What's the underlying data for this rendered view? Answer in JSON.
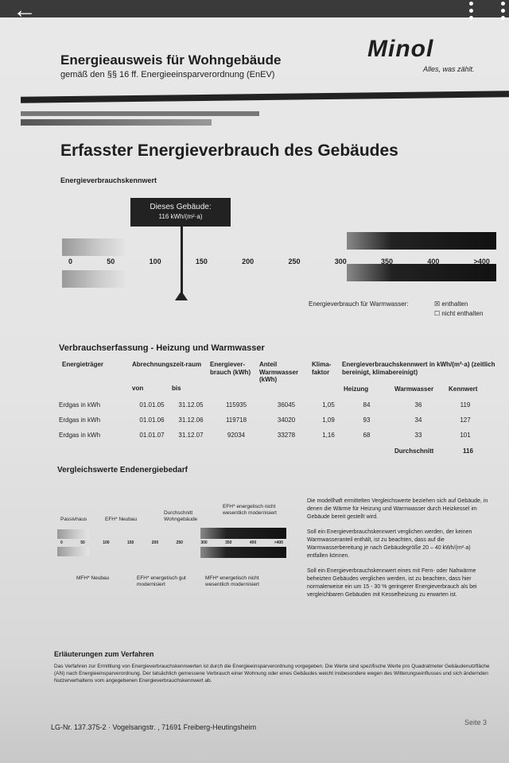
{
  "viewer": {
    "back_icon": "arrow-left-icon",
    "menu_icon": "more-vertical-icon"
  },
  "header": {
    "title": "Energieausweis für Wohngebäude",
    "subtitle": "gemäß den §§ 16 ff. Energieeinsparverordnung (EnEV)",
    "logo": "Minol",
    "slogan": "Alles, was zählt."
  },
  "section_title": "Erfasster Energieverbrauch des Gebäudes",
  "kennwert": {
    "label": "Energieverbrauchskennwert",
    "marker_title": "Dieses Gebäude:",
    "marker_value": "116 kWh/(m²·a)",
    "value": 116,
    "scale": [
      "0",
      "50",
      "100",
      "150",
      "200",
      "250",
      "300",
      "350",
      "400",
      ">400"
    ],
    "warmwasser_label": "Energieverbrauch für Warmwasser:",
    "enthalten": "enthalten",
    "nicht_enthalten": "nicht enthalten",
    "enthalten_checked": true
  },
  "verbrauch": {
    "title": "Verbrauchserfassung - Heizung und Warmwasser",
    "headers": {
      "traeger": "Energieträger",
      "zeitraum": "Abrechnungszeit-raum",
      "von": "von",
      "bis": "bis",
      "verbrauch": "Energiever-brauch (kWh)",
      "anteil": "Anteil Warmwasser (kWh)",
      "klima": "Klima-faktor",
      "kennwert": "Energieverbrauchskennwert in kWh/(m²·a) (zeitlich bereinigt, klimabereinigt)",
      "heizung": "Heizung",
      "warmwasser": "Warmwasser",
      "kw": "Kennwert"
    },
    "rows": [
      [
        "Erdgas in kWh",
        "01.01.05",
        "31.12.05",
        "115935",
        "36045",
        "1,05",
        "84",
        "36",
        "119"
      ],
      [
        "Erdgas in kWh",
        "01.01.06",
        "31.12.06",
        "119718",
        "34020",
        "1,09",
        "93",
        "34",
        "127"
      ],
      [
        "Erdgas in kWh",
        "01.01.07",
        "31.12.07",
        "92034",
        "33278",
        "1,16",
        "68",
        "33",
        "101"
      ]
    ],
    "avg_label": "Durchschnitt",
    "avg": "116"
  },
  "vergleich": {
    "title": "Vergleichswerte Endenergiebedarf",
    "top_labels": [
      "Passivhaus",
      "EFH* Neubau",
      "Durchschnitt Wohngebäude",
      "EFH* energetisch nicht wesentlich modernisiert"
    ],
    "scale": [
      "0",
      "50",
      "100",
      "150",
      "200",
      "250",
      "300",
      "350",
      "400",
      ">400"
    ],
    "bottom_labels": [
      "MFH* Neubau",
      "EFH* energetisch gut modernisiert",
      "MFH* energetisch nicht wesentlich modernisiert"
    ],
    "text": [
      "Die modellhaft ermittelten Vergleichswerte beziehen sich auf Gebäude, in denen die Wärme für Heizung und Warmwasser durch Heizkessel im Gebäude bereit gestellt wird.",
      "Soll ein Energieverbrauchskennwert verglichen werden, der keinen Warmwasseranteil enthält, ist zu beachten, dass auf die Warmwasserbereitung je nach Gebäudegröße 20 – 40 kWh/(m²·a) entfallen können.",
      "Soll ein Energieverbrauchskennwert eines mit Fern- oder Nahwärme beheizten Gebäudes verglichen werden, ist zu beachten, dass hier normalerweise ein um 15 - 30 % geringerer Energieverbrauch als bei vergleichbaren Gebäuden mit Kesselheizung zu erwarten ist."
    ]
  },
  "erlaeuterung": {
    "title": "Erläuterungen zum Verfahren",
    "text": "Das Verfahren zur Ermittlung von Energieverbrauchskennwerten ist durch die Energieeinsparverordnung vorgegeben. Die Werte sind spezifische Werte pro Quadratmeter Gebäudenutzfläche (AN) nach Energieeinsparverordnung. Der tatsächlich gemessene Verbrauch einer Wohnung oder eines Gebäudes weicht insbesondere wegen des Witterungseinflusses und sich ändernden Nutzerverhaltens vom angegebenen Energieverbrauchskennwert ab."
  },
  "footer": {
    "address": "LG-Nr. 137.375-2 · Vogelsangstr. , 71691 Freiberg-Heutingsheim",
    "page": "Seite 3"
  }
}
